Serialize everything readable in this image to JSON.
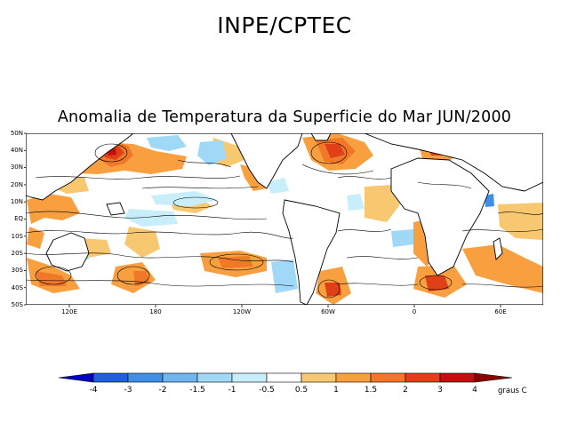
{
  "header": {
    "title": "INPE/CPTEC"
  },
  "map": {
    "title": "Anomalia de Temperatura da Superficie do Mar JUN/2000",
    "lat_labels": [
      "50N",
      "40N",
      "30N",
      "20N",
      "10N",
      "EQ",
      "10S",
      "20S",
      "30S",
      "40S",
      "50S"
    ],
    "lon_labels": [
      "120E",
      "180",
      "120W",
      "60W",
      "0",
      "60E"
    ]
  },
  "colorbar": {
    "labels": [
      "-4",
      "-3",
      "-2",
      "-1.5",
      "-1",
      "-0.5",
      "0.5",
      "1",
      "1.5",
      "2",
      "3",
      "4"
    ],
    "units": "graus C",
    "colors": [
      "#0000c0",
      "#1f5fd8",
      "#3f8fe8",
      "#6fb5f0",
      "#a0d8f8",
      "#c8eefc",
      "#ffffff",
      "#f7c870",
      "#f8a040",
      "#f07828",
      "#e04018",
      "#c01010",
      "#8c0000"
    ]
  }
}
